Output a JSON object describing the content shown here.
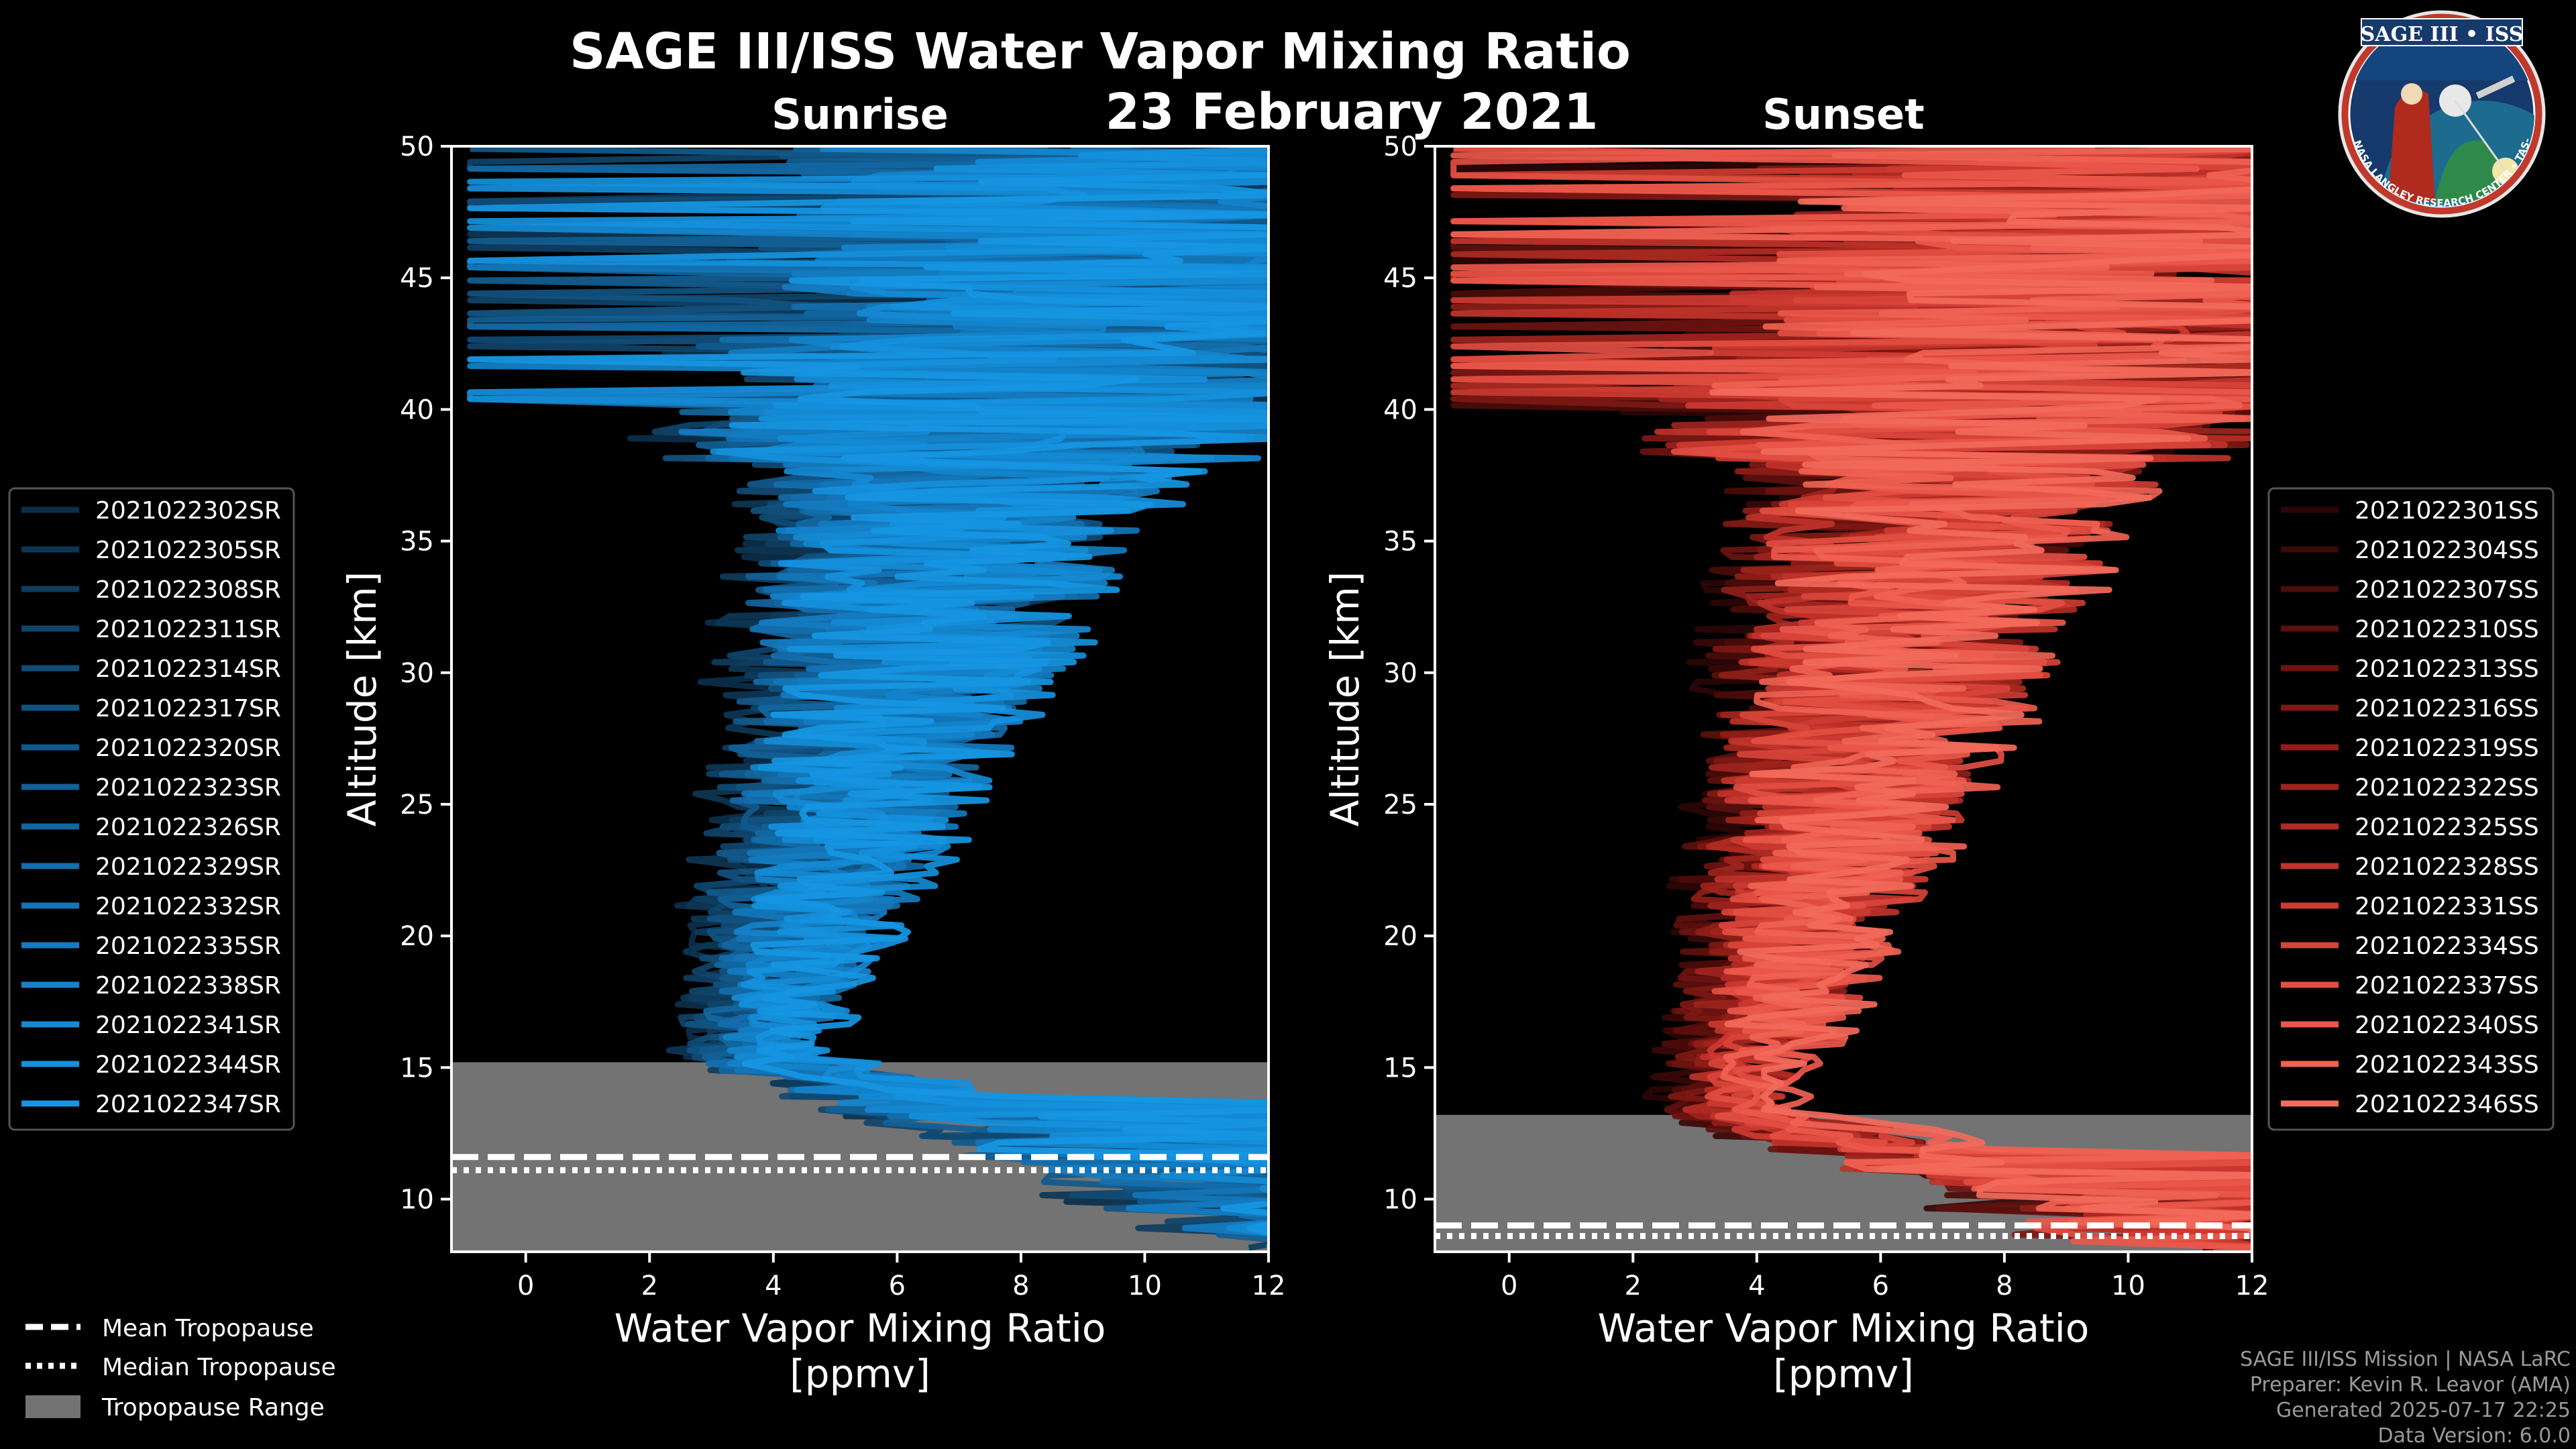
{
  "chart_data": {
    "title": "SAGE III/ISS Water Vapor Mixing Ratio",
    "date": "23 February 2021",
    "panels": [
      {
        "id": "sunrise",
        "label": "Sunrise",
        "type": "line",
        "xlabel_line1": "Water Vapor Mixing Ratio",
        "xlabel_line2": "[ppmv]",
        "ylabel": "Altitude [km]",
        "xlim": [
          -1.2,
          12
        ],
        "ylim": [
          8,
          50
        ],
        "xticks": [
          0,
          2,
          4,
          6,
          8,
          10,
          12
        ],
        "yticks": [
          10,
          15,
          20,
          25,
          30,
          35,
          40,
          45,
          50
        ],
        "tropopause_range": [
          8,
          15.2
        ],
        "mean_tropopause": 11.6,
        "median_tropopause": 11.1,
        "series": [
          {
            "name": "2021022302SR",
            "color": "#0c2f4a"
          },
          {
            "name": "2021022305SR",
            "color": "#0d3654"
          },
          {
            "name": "2021022308SR",
            "color": "#0e3d5f"
          },
          {
            "name": "2021022311SR",
            "color": "#0f446a"
          },
          {
            "name": "2021022314SR",
            "color": "#104b75"
          },
          {
            "name": "2021022317SR",
            "color": "#115280"
          },
          {
            "name": "2021022320SR",
            "color": "#11598b"
          },
          {
            "name": "2021022323SR",
            "color": "#126096"
          },
          {
            "name": "2021022326SR",
            "color": "#1267a1"
          },
          {
            "name": "2021022329SR",
            "color": "#136eac"
          },
          {
            "name": "2021022332SR",
            "color": "#1375b7"
          },
          {
            "name": "2021022335SR",
            "color": "#147cc1"
          },
          {
            "name": "2021022338SR",
            "color": "#1483cb"
          },
          {
            "name": "2021022341SR",
            "color": "#158ad4"
          },
          {
            "name": "2021022344SR",
            "color": "#1590dc"
          },
          {
            "name": "2021022347SR",
            "color": "#1696e2"
          }
        ]
      },
      {
        "id": "sunset",
        "label": "Sunset",
        "type": "line",
        "xlabel_line1": "Water Vapor Mixing Ratio",
        "xlabel_line2": "[ppmv]",
        "ylabel": "Altitude [km]",
        "xlim": [
          -1.2,
          12
        ],
        "ylim": [
          8,
          50
        ],
        "xticks": [
          0,
          2,
          4,
          6,
          8,
          10,
          12
        ],
        "yticks": [
          10,
          15,
          20,
          25,
          30,
          35,
          40,
          45,
          50
        ],
        "tropopause_range": [
          8,
          13.2
        ],
        "mean_tropopause": 9.0,
        "median_tropopause": 8.6,
        "series": [
          {
            "name": "2021022301SS",
            "color": "#2a0605"
          },
          {
            "name": "2021022304SS",
            "color": "#3a0908"
          },
          {
            "name": "2021022307SS",
            "color": "#4b0c0a"
          },
          {
            "name": "2021022310SS",
            "color": "#5c100d"
          },
          {
            "name": "2021022313SS",
            "color": "#6d1410"
          },
          {
            "name": "2021022316SS",
            "color": "#7e1914"
          },
          {
            "name": "2021022319SS",
            "color": "#8f1e18"
          },
          {
            "name": "2021022322SS",
            "color": "#a0241d"
          },
          {
            "name": "2021022325SS",
            "color": "#b02b23"
          },
          {
            "name": "2021022328SS",
            "color": "#bf332a"
          },
          {
            "name": "2021022331SS",
            "color": "#cc3b31"
          },
          {
            "name": "2021022334SS",
            "color": "#d84439"
          },
          {
            "name": "2021022337SS",
            "color": "#e24e42"
          },
          {
            "name": "2021022340SS",
            "color": "#ea584b"
          },
          {
            "name": "2021022343SS",
            "color": "#ef6253"
          },
          {
            "name": "2021022346SS",
            "color": "#f26a5b"
          }
        ]
      }
    ],
    "legend_tropopause": [
      {
        "key": "mean",
        "label": "Mean Tropopause"
      },
      {
        "key": "median",
        "label": "Median Tropopause"
      },
      {
        "key": "range",
        "label": "Tropopause Range"
      }
    ]
  },
  "logo": {
    "title": "SAGE III • ISS",
    "ring_text": "BALL • NASA LANGLEY RESEARCH CENTER • TAS-I • ESA"
  },
  "credits": [
    "SAGE III/ISS Mission | NASA LaRC",
    "Preparer: Kevin R. Leavor (AMA)",
    "Generated 2025-07-17 22:25",
    "Data Version: 6.0.0"
  ],
  "colors": {
    "background": "#000000",
    "tropopause_fill": "#737373",
    "axis": "#ffffff"
  }
}
